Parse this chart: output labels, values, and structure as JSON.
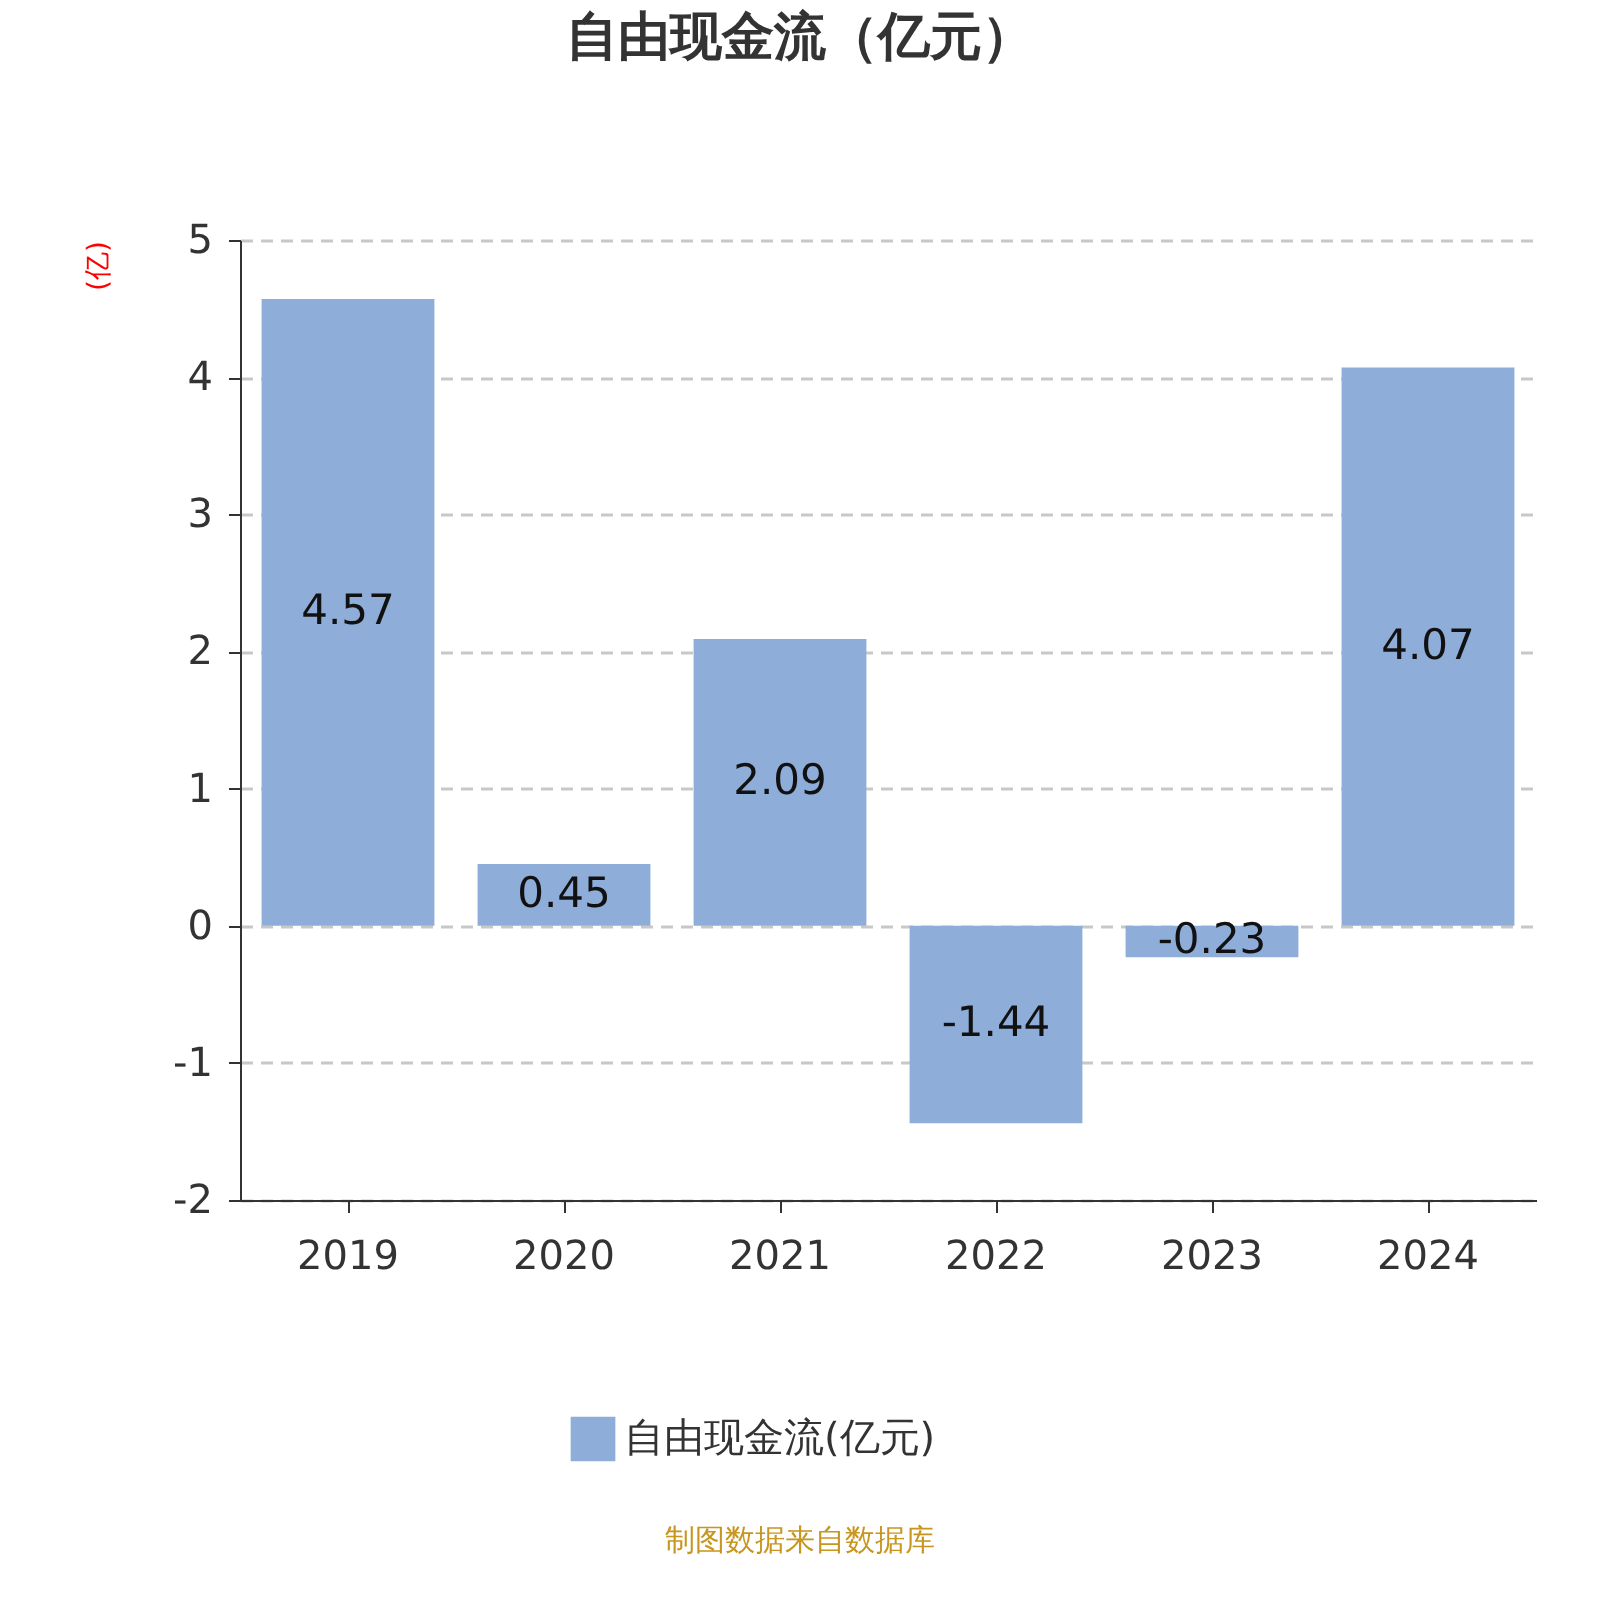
{
  "chart_data": {
    "type": "bar",
    "title": "自由现金流（亿元）",
    "ylabel": "(亿)",
    "categories": [
      "2019",
      "2020",
      "2021",
      "2022",
      "2023",
      "2024"
    ],
    "series": [
      {
        "name": "自由现金流(亿元)",
        "color": "#8eadd9",
        "values": [
          4.57,
          0.45,
          2.09,
          -1.44,
          -0.23,
          4.07
        ]
      }
    ],
    "ylim": [
      -2,
      5
    ],
    "yticks": [
      -2,
      -1,
      0,
      1,
      2,
      3,
      4,
      5
    ],
    "grid": "y",
    "line_style": "dashed",
    "data_labels": true,
    "legend": "bottom",
    "annotations": [
      "制图数据来自数据库"
    ]
  }
}
